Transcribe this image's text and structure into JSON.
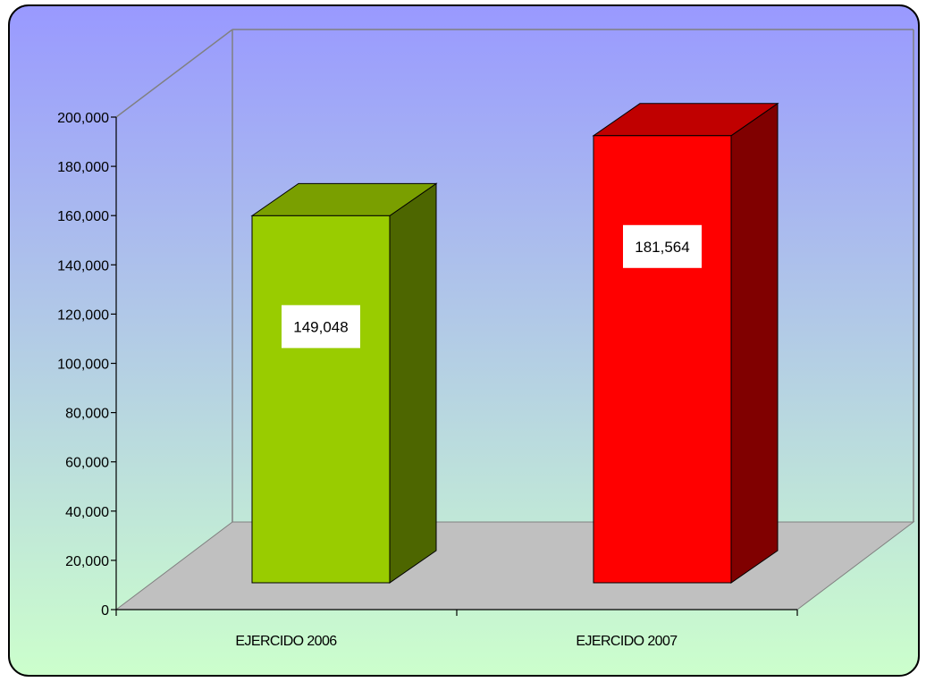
{
  "chart_data": {
    "type": "bar",
    "style": "3d-column",
    "categories": [
      "EJERCIDO 2006",
      "EJERCIDO 2007"
    ],
    "values": [
      149048,
      181564
    ],
    "value_labels": [
      "149,048",
      "181,564"
    ],
    "ylim": [
      0,
      200000
    ],
    "y_ticks": [
      0,
      20000,
      40000,
      60000,
      80000,
      100000,
      120000,
      140000,
      160000,
      180000,
      200000
    ],
    "y_tick_labels": [
      "0",
      "20,000",
      "40,000",
      "60,000",
      "80,000",
      "100,000",
      "120,000",
      "140,000",
      "160,000",
      "180,000",
      "200,000"
    ],
    "grid": false,
    "legend": "none",
    "colors": {
      "bar_1_front": "#99cc00",
      "bar_1_top": "#7a9f00",
      "bar_1_side": "#4d6600",
      "bar_2_front": "#ff0000",
      "bar_2_top": "#c00000",
      "bar_2_side": "#800000",
      "floor": "#c0c0c0",
      "background_top": "#9999ff",
      "background_bottom": "#ccffcc"
    }
  }
}
